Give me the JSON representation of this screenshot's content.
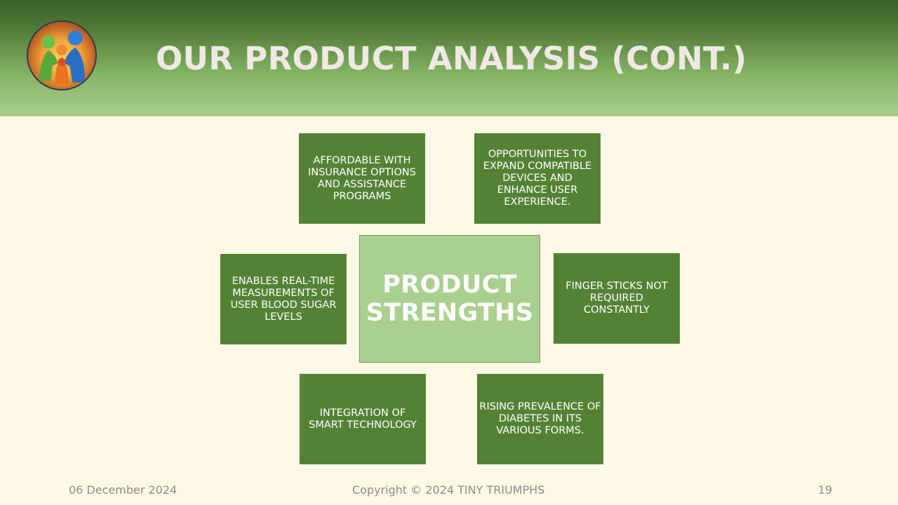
{
  "slide": {
    "title": "OUR PRODUCT ANALYSIS (CONT.)",
    "logo_icon": "family-hands-logo-icon"
  },
  "diagram": {
    "center": "PRODUCT STRENGTHS",
    "boxes": [
      "AFFORDABLE WITH INSURANCE OPTIONS AND ASSISTANCE PROGRAMS",
      "OPPORTUNITIES  TO EXPAND COMPATIBLE DEVICES AND ENHANCE USER EXPERIENCE.",
      "ENABLES REAL-TIME MEASUREMENTS OF USER BLOOD SUGAR LEVELS",
      "FINGER STICKS NOT REQUIRED CONSTANTLY",
      "INTEGRATION OF SMART TECHNOLOGY",
      "RISING PREVALENCE OF DIABETES IN ITS VARIOUS FORMS."
    ],
    "colors": {
      "box": "#548235",
      "center": "#a9d08e",
      "header_top": "#3a5e28",
      "header_bottom": "#a7cf8c",
      "background": "#fef8e6"
    }
  },
  "footer": {
    "date": "06 December 2024",
    "copyright": "Copyright © 2024 TINY TRIUMPHS",
    "page": "19"
  }
}
